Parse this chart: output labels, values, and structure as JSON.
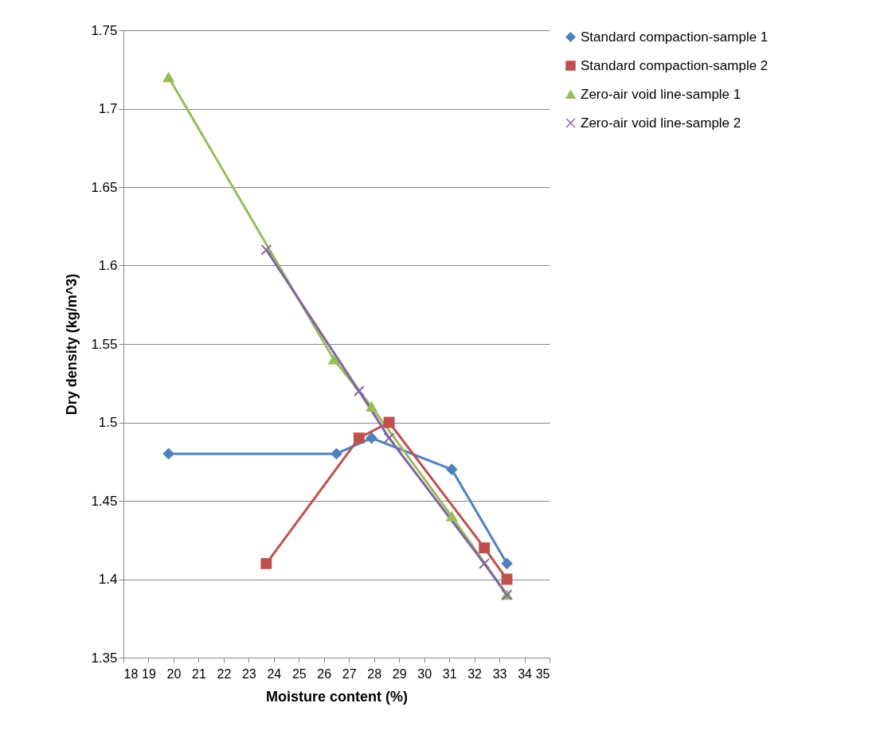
{
  "chart_data": {
    "type": "line",
    "xlabel": "Moisture content (%)",
    "ylabel": "Dry density (kg/m^3)",
    "xlim": [
      18,
      35
    ],
    "xticks": [
      18,
      19,
      20,
      21,
      22,
      23,
      24,
      25,
      26,
      27,
      28,
      29,
      30,
      31,
      32,
      33,
      34,
      35
    ],
    "ylim": [
      1.35,
      1.75
    ],
    "yticks": [
      1.35,
      1.4,
      1.45,
      1.5,
      1.55,
      1.6,
      1.65,
      1.7,
      1.75
    ],
    "grid": "y",
    "legend": "right",
    "series": [
      {
        "name": "Standard compaction-sample 1",
        "color": "#4f81bd",
        "marker": "diamond",
        "x": [
          19.8,
          26.5,
          27.9,
          31.1,
          33.3
        ],
        "values": [
          1.48,
          1.48,
          1.49,
          1.47,
          1.41
        ]
      },
      {
        "name": "Standard compaction-sample 2",
        "color": "#c0504d",
        "marker": "square",
        "x": [
          23.7,
          27.4,
          28.6,
          32.4,
          33.3
        ],
        "values": [
          1.41,
          1.49,
          1.5,
          1.42,
          1.4
        ]
      },
      {
        "name": "Zero-air void line-sample 1",
        "color": "#9bbb59",
        "marker": "triangle",
        "x": [
          19.8,
          26.4,
          27.9,
          31.1,
          33.3
        ],
        "values": [
          1.72,
          1.54,
          1.51,
          1.44,
          1.39
        ]
      },
      {
        "name": "Zero-air void line-sample 2",
        "color": "#8064a2",
        "marker": "cross",
        "x": [
          23.7,
          27.4,
          28.6,
          32.4,
          33.3
        ],
        "values": [
          1.61,
          1.52,
          1.49,
          1.41,
          1.39
        ]
      }
    ]
  }
}
